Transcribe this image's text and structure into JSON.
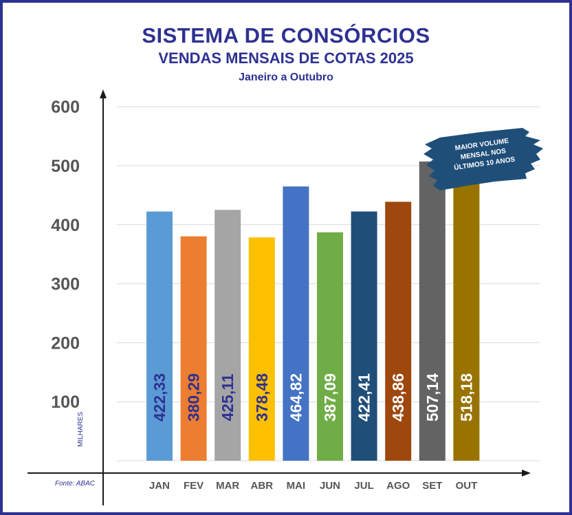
{
  "colors": {
    "frame": "#2e3192",
    "title": "#2e3192",
    "badge": "#1f4e79"
  },
  "header": {
    "title": "SISTEMA DE CONSÓRCIOS",
    "subtitle": "VENDAS MENSAIS DE COTAS 2025",
    "period": "Janeiro a Outubro"
  },
  "source": "Fonte: ABAC",
  "unit_label": "MILHARES",
  "badge": {
    "line1": "MAIOR VOLUME",
    "line2": "MENSAL NOS",
    "line3": "ÚLTIMOS 10 ANOS"
  },
  "chart_data": {
    "type": "bar",
    "title": "VENDAS MENSAIS DE COTAS 2025",
    "xlabel": "",
    "ylabel": "MILHARES",
    "ylim": [
      0,
      600
    ],
    "yticks": [
      100,
      200,
      300,
      400,
      500,
      600
    ],
    "grid": true,
    "categories": [
      "JAN",
      "FEV",
      "MAR",
      "ABR",
      "MAI",
      "JUN",
      "JUL",
      "AGO",
      "SET",
      "OUT"
    ],
    "values": [
      422.33,
      380.29,
      425.11,
      378.48,
      464.82,
      387.09,
      422.41,
      438.86,
      507.14,
      518.18
    ],
    "labels": [
      "422,33",
      "380,29",
      "425,11",
      "378,48",
      "464,82",
      "387,09",
      "422,41",
      "438,86",
      "507,14",
      "518,18"
    ],
    "bar_colors": [
      "#5b9bd5",
      "#ed7d31",
      "#a5a5a5",
      "#ffc000",
      "#4472c4",
      "#70ad47",
      "#1f4e79",
      "#9e480e",
      "#636363",
      "#997300"
    ],
    "label_colors": [
      "#2e3192",
      "#2e3192",
      "#2e3192",
      "#2e3192",
      "#ffffff",
      "#ffffff",
      "#ffffff",
      "#ffffff",
      "#ffffff",
      "#ffffff"
    ],
    "annotation": "MAIOR VOLUME MENSAL NOS ÚLTIMOS 10 ANOS"
  }
}
